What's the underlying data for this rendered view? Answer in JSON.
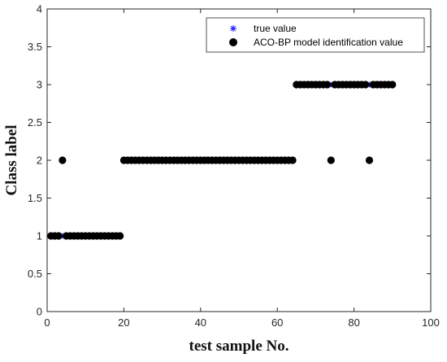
{
  "chart_data": {
    "type": "scatter",
    "xlabel": "test sample No.",
    "ylabel": "Class label",
    "xlim": [
      0,
      100
    ],
    "ylim": [
      0,
      4
    ],
    "xticks": [
      "0",
      "20",
      "40",
      "60",
      "80",
      "100"
    ],
    "yticks": [
      "0",
      "0.5",
      "1",
      "1.5",
      "2",
      "2.5",
      "3",
      "3.5",
      "4"
    ],
    "grid": false,
    "legend_position": "top-right",
    "series": [
      {
        "name": "true value",
        "marker": "asterisk",
        "color": "#1f1fff",
        "points": [
          [
            1,
            1
          ],
          [
            2,
            1
          ],
          [
            3,
            1
          ],
          [
            4,
            1
          ],
          [
            5,
            1
          ],
          [
            6,
            1
          ],
          [
            7,
            1
          ],
          [
            8,
            1
          ],
          [
            9,
            1
          ],
          [
            10,
            1
          ],
          [
            11,
            1
          ],
          [
            12,
            1
          ],
          [
            13,
            1
          ],
          [
            14,
            1
          ],
          [
            15,
            1
          ],
          [
            16,
            1
          ],
          [
            17,
            1
          ],
          [
            18,
            1
          ],
          [
            19,
            1
          ],
          [
            20,
            2
          ],
          [
            21,
            2
          ],
          [
            22,
            2
          ],
          [
            23,
            2
          ],
          [
            24,
            2
          ],
          [
            25,
            2
          ],
          [
            26,
            2
          ],
          [
            27,
            2
          ],
          [
            28,
            2
          ],
          [
            29,
            2
          ],
          [
            30,
            2
          ],
          [
            31,
            2
          ],
          [
            32,
            2
          ],
          [
            33,
            2
          ],
          [
            34,
            2
          ],
          [
            35,
            2
          ],
          [
            36,
            2
          ],
          [
            37,
            2
          ],
          [
            38,
            2
          ],
          [
            39,
            2
          ],
          [
            40,
            2
          ],
          [
            41,
            2
          ],
          [
            42,
            2
          ],
          [
            43,
            2
          ],
          [
            44,
            2
          ],
          [
            45,
            2
          ],
          [
            46,
            2
          ],
          [
            47,
            2
          ],
          [
            48,
            2
          ],
          [
            49,
            2
          ],
          [
            50,
            2
          ],
          [
            51,
            2
          ],
          [
            52,
            2
          ],
          [
            53,
            2
          ],
          [
            54,
            2
          ],
          [
            55,
            2
          ],
          [
            56,
            2
          ],
          [
            57,
            2
          ],
          [
            58,
            2
          ],
          [
            59,
            2
          ],
          [
            60,
            2
          ],
          [
            61,
            2
          ],
          [
            62,
            2
          ],
          [
            63,
            2
          ],
          [
            64,
            2
          ],
          [
            65,
            3
          ],
          [
            66,
            3
          ],
          [
            67,
            3
          ],
          [
            68,
            3
          ],
          [
            69,
            3
          ],
          [
            70,
            3
          ],
          [
            71,
            3
          ],
          [
            72,
            3
          ],
          [
            73,
            3
          ],
          [
            74,
            3
          ],
          [
            75,
            3
          ],
          [
            76,
            3
          ],
          [
            77,
            3
          ],
          [
            78,
            3
          ],
          [
            79,
            3
          ],
          [
            80,
            3
          ],
          [
            81,
            3
          ],
          [
            82,
            3
          ],
          [
            83,
            3
          ],
          [
            84,
            3
          ],
          [
            85,
            3
          ],
          [
            86,
            3
          ],
          [
            87,
            3
          ],
          [
            88,
            3
          ],
          [
            89,
            3
          ],
          [
            90,
            3
          ]
        ]
      },
      {
        "name": "ACO-BP model identification value",
        "marker": "filled-circle",
        "color": "#000000",
        "points": [
          [
            1,
            1
          ],
          [
            2,
            1
          ],
          [
            3,
            1
          ],
          [
            4,
            2
          ],
          [
            5,
            1
          ],
          [
            6,
            1
          ],
          [
            7,
            1
          ],
          [
            8,
            1
          ],
          [
            9,
            1
          ],
          [
            10,
            1
          ],
          [
            11,
            1
          ],
          [
            12,
            1
          ],
          [
            13,
            1
          ],
          [
            14,
            1
          ],
          [
            15,
            1
          ],
          [
            16,
            1
          ],
          [
            17,
            1
          ],
          [
            18,
            1
          ],
          [
            19,
            1
          ],
          [
            20,
            2
          ],
          [
            21,
            2
          ],
          [
            22,
            2
          ],
          [
            23,
            2
          ],
          [
            24,
            2
          ],
          [
            25,
            2
          ],
          [
            26,
            2
          ],
          [
            27,
            2
          ],
          [
            28,
            2
          ],
          [
            29,
            2
          ],
          [
            30,
            2
          ],
          [
            31,
            2
          ],
          [
            32,
            2
          ],
          [
            33,
            2
          ],
          [
            34,
            2
          ],
          [
            35,
            2
          ],
          [
            36,
            2
          ],
          [
            37,
            2
          ],
          [
            38,
            2
          ],
          [
            39,
            2
          ],
          [
            40,
            2
          ],
          [
            41,
            2
          ],
          [
            42,
            2
          ],
          [
            43,
            2
          ],
          [
            44,
            2
          ],
          [
            45,
            2
          ],
          [
            46,
            2
          ],
          [
            47,
            2
          ],
          [
            48,
            2
          ],
          [
            49,
            2
          ],
          [
            50,
            2
          ],
          [
            51,
            2
          ],
          [
            52,
            2
          ],
          [
            53,
            2
          ],
          [
            54,
            2
          ],
          [
            55,
            2
          ],
          [
            56,
            2
          ],
          [
            57,
            2
          ],
          [
            58,
            2
          ],
          [
            59,
            2
          ],
          [
            60,
            2
          ],
          [
            61,
            2
          ],
          [
            62,
            2
          ],
          [
            63,
            2
          ],
          [
            64,
            2
          ],
          [
            65,
            3
          ],
          [
            66,
            3
          ],
          [
            67,
            3
          ],
          [
            68,
            3
          ],
          [
            69,
            3
          ],
          [
            70,
            3
          ],
          [
            71,
            3
          ],
          [
            72,
            3
          ],
          [
            73,
            3
          ],
          [
            74,
            2
          ],
          [
            75,
            3
          ],
          [
            76,
            3
          ],
          [
            77,
            3
          ],
          [
            78,
            3
          ],
          [
            79,
            3
          ],
          [
            80,
            3
          ],
          [
            81,
            3
          ],
          [
            82,
            3
          ],
          [
            83,
            3
          ],
          [
            84,
            2
          ],
          [
            85,
            3
          ],
          [
            86,
            3
          ],
          [
            87,
            3
          ],
          [
            88,
            3
          ],
          [
            89,
            3
          ],
          [
            90,
            3
          ]
        ]
      }
    ]
  }
}
